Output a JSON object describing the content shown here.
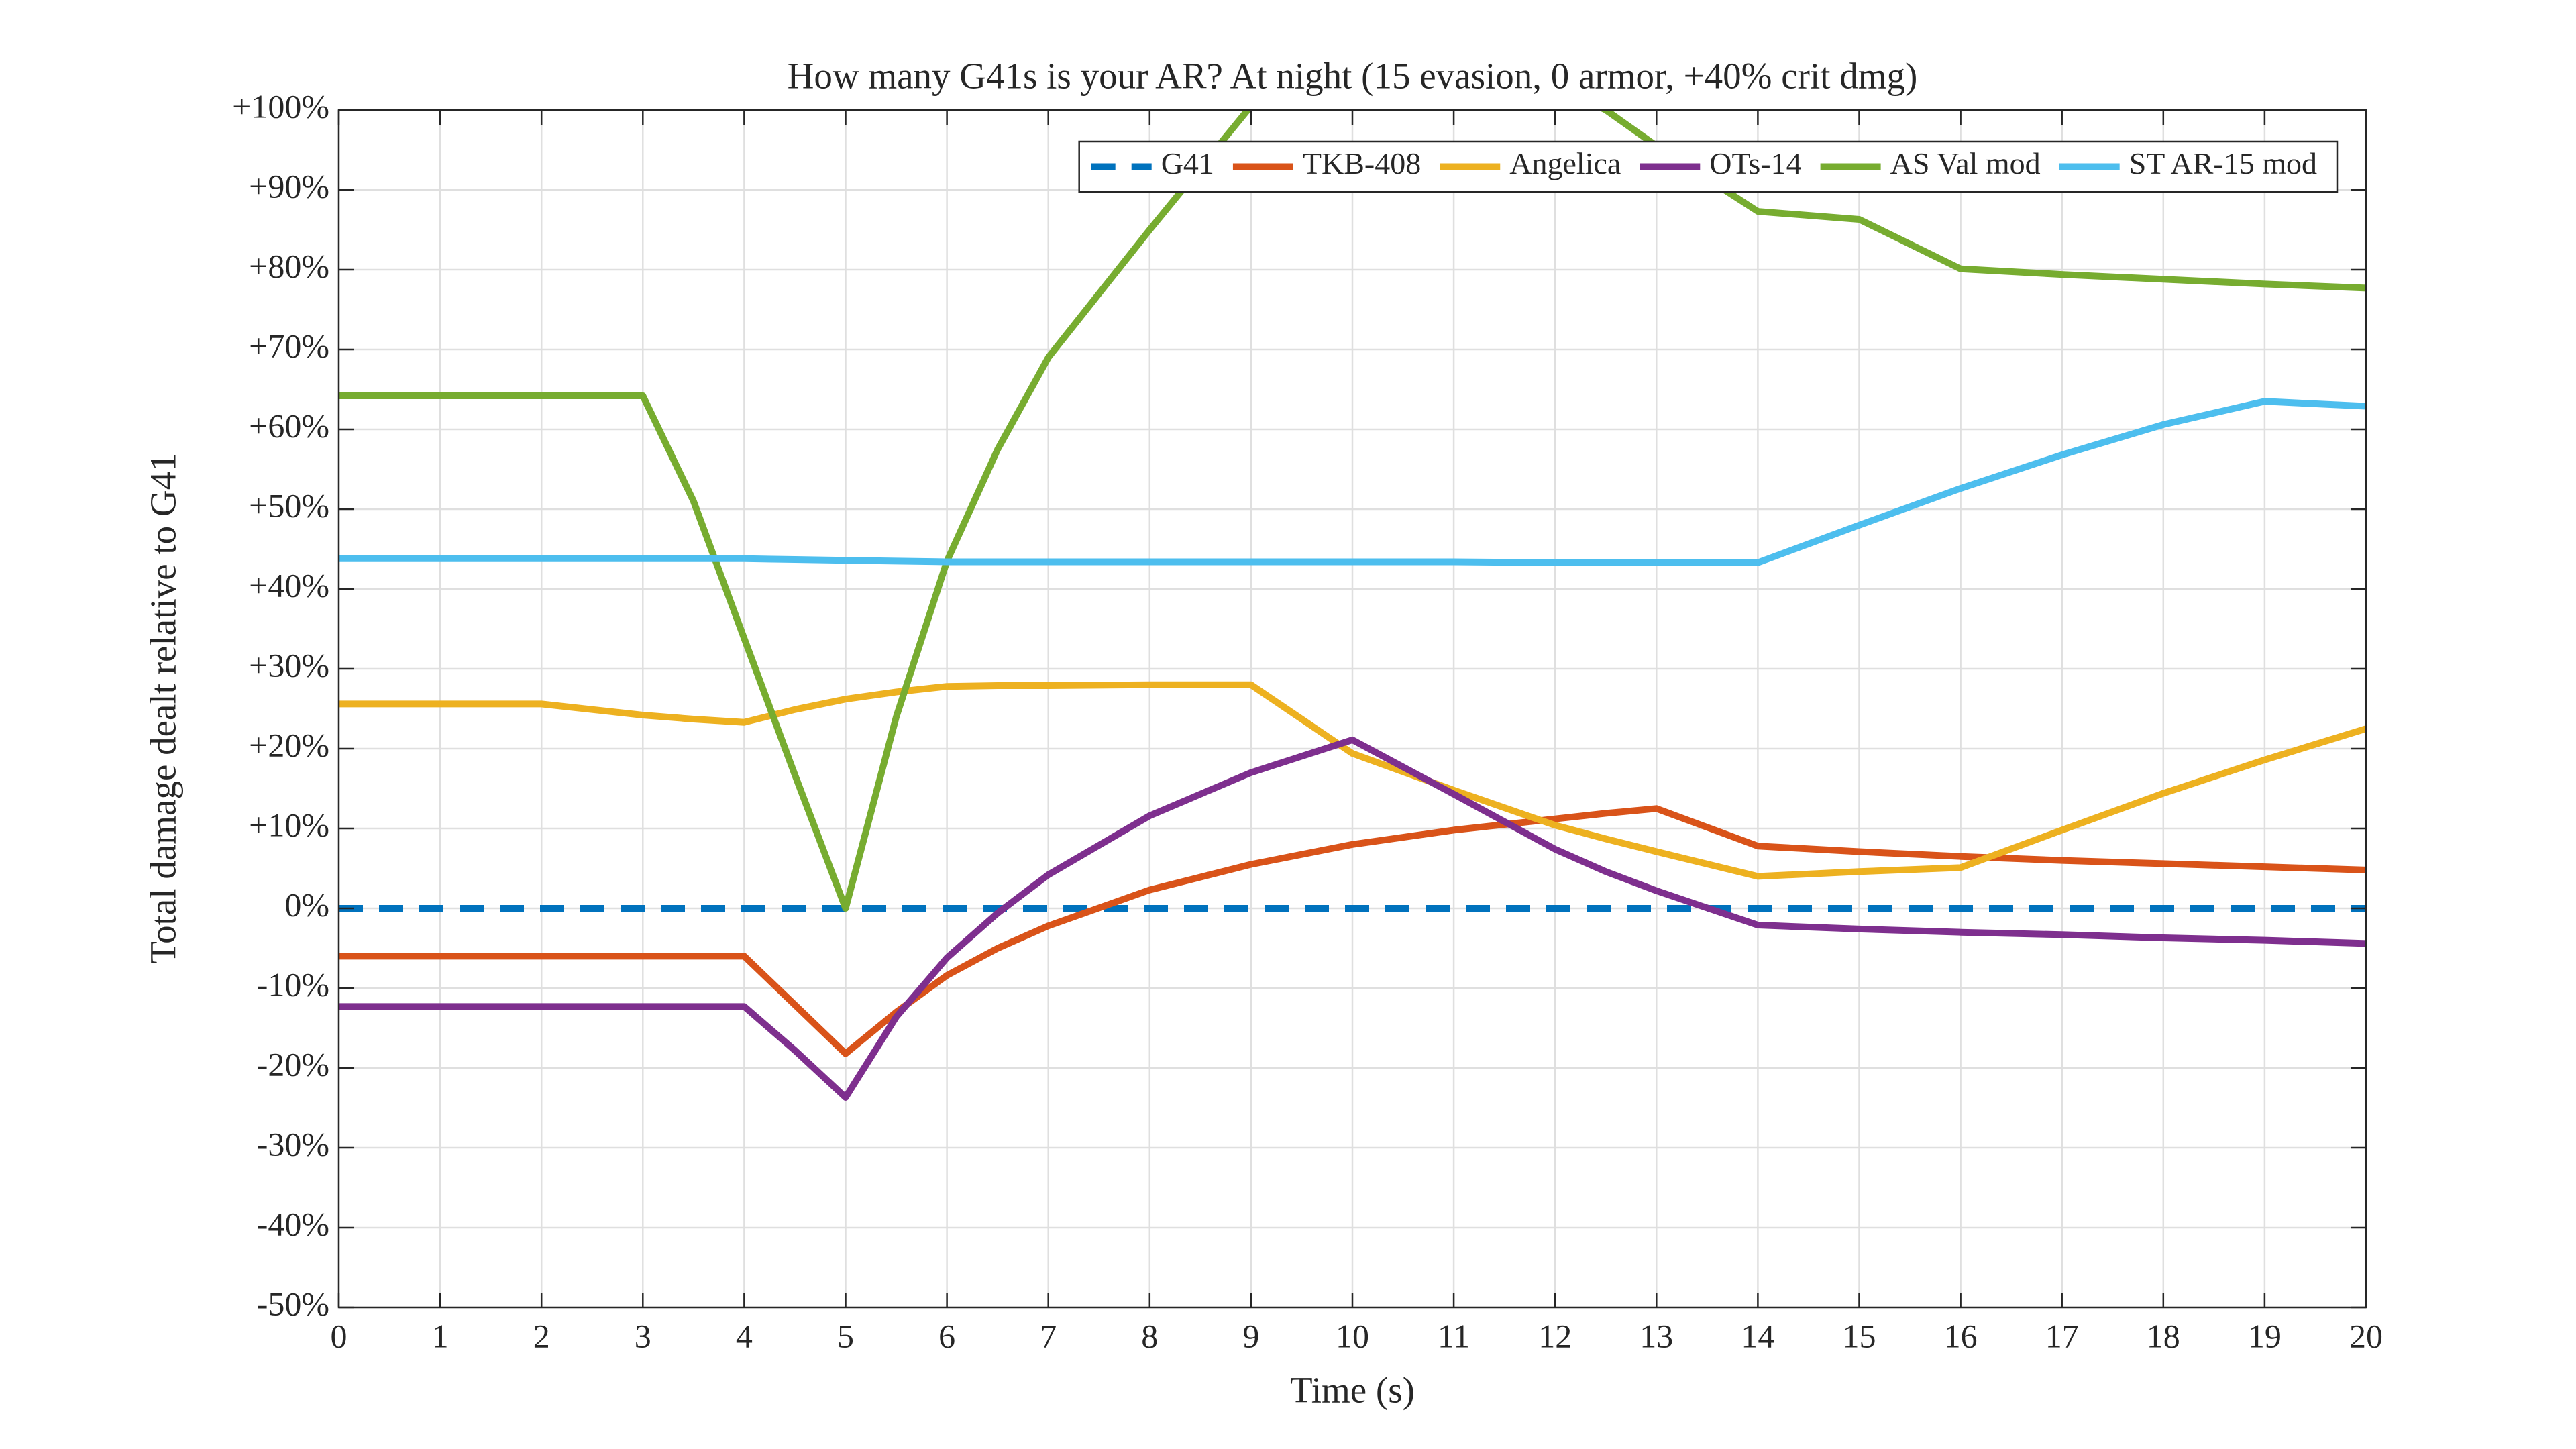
{
  "chart_data": {
    "type": "line",
    "title": "How many G41s is your AR? At night (15 evasion, 0 armor, +40% crit dmg)",
    "x_label": "Time (s)",
    "y_label": "Total damage dealt relative to G41",
    "x": [
      0,
      1,
      2,
      3,
      3.5,
      4,
      4.5,
      5,
      5.5,
      6,
      6.5,
      7,
      8,
      9,
      10,
      11,
      12,
      12.5,
      13,
      14,
      15,
      16,
      17,
      18,
      19,
      20
    ],
    "series": [
      {
        "name": "G41",
        "color": "#0072BD",
        "line_style": "dashed",
        "values": [
          0,
          0,
          0,
          0,
          0,
          0,
          0,
          0,
          0,
          0,
          0,
          0,
          0,
          0,
          0,
          0,
          0,
          0,
          0,
          0,
          0,
          0,
          0,
          0,
          0,
          0
        ]
      },
      {
        "name": "TKB-408",
        "color": "#D95319",
        "values": [
          -6,
          -6,
          -6,
          -6,
          -6,
          -6,
          -12.1,
          -18.2,
          -13,
          -8.4,
          -5,
          -2.2,
          2.3,
          5.5,
          8,
          9.8,
          11.2,
          11.9,
          12.5,
          7.8,
          7.1,
          6.5,
          6,
          5.6,
          5.2,
          4.8
        ]
      },
      {
        "name": "Angelica",
        "color": "#EDB120",
        "values": [
          25.6,
          25.6,
          25.6,
          24.2,
          23.7,
          23.3,
          24.9,
          26.2,
          27.1,
          27.8,
          27.9,
          27.9,
          28,
          28,
          19.4,
          14.8,
          10.4,
          8.7,
          7.1,
          4,
          4.6,
          5.1,
          9.8,
          14.4,
          18.6,
          22.5
        ]
      },
      {
        "name": "OTs-14",
        "color": "#7E2F8E",
        "values": [
          -12.3,
          -12.3,
          -12.3,
          -12.3,
          -12.3,
          -12.3,
          -17.8,
          -23.7,
          -13.6,
          -6.2,
          -0.6,
          4.2,
          11.6,
          17,
          21.1,
          14.3,
          7.4,
          4.6,
          2.2,
          -2.1,
          -2.6,
          -3,
          -3.3,
          -3.7,
          -4,
          -4.4
        ]
      },
      {
        "name": "AS Val mod",
        "color": "#77AC30",
        "values": [
          64.2,
          64.2,
          64.2,
          64.2,
          51,
          33.8,
          16.7,
          0,
          24,
          43.5,
          57.5,
          69,
          85,
          100.5,
          106,
          108,
          103,
          100,
          95.5,
          87.3,
          86.3,
          80.1,
          79.4,
          78.8,
          78.2,
          77.7
        ]
      },
      {
        "name": "ST AR-15 mod",
        "color": "#4DBEEE",
        "values": [
          43.8,
          43.8,
          43.8,
          43.8,
          43.8,
          43.8,
          43.7,
          43.6,
          43.5,
          43.4,
          43.4,
          43.4,
          43.4,
          43.4,
          43.4,
          43.4,
          43.3,
          43.3,
          43.3,
          43.3,
          48,
          52.6,
          56.8,
          60.6,
          63.5,
          62.9
        ]
      }
    ],
    "xlim": [
      0,
      20
    ],
    "xticks": [
      0,
      1,
      2,
      3,
      4,
      5,
      6,
      7,
      8,
      9,
      10,
      11,
      12,
      13,
      14,
      15,
      16,
      17,
      18,
      19,
      20
    ],
    "ylim": [
      -50,
      100
    ],
    "yticks": [
      {
        "value": -50,
        "label": "-50%"
      },
      {
        "value": -40,
        "label": "-40%"
      },
      {
        "value": -30,
        "label": "-30%"
      },
      {
        "value": -20,
        "label": "-20%"
      },
      {
        "value": -10,
        "label": "-10%"
      },
      {
        "value": 0,
        "label": "0%"
      },
      {
        "value": 10,
        "label": "+10%"
      },
      {
        "value": 20,
        "label": "+20%"
      },
      {
        "value": 30,
        "label": "+30%"
      },
      {
        "value": 40,
        "label": "+40%"
      },
      {
        "value": 50,
        "label": "+50%"
      },
      {
        "value": 60,
        "label": "+60%"
      },
      {
        "value": 70,
        "label": "+70%"
      },
      {
        "value": 80,
        "label": "+80%"
      },
      {
        "value": 90,
        "label": "+90%"
      },
      {
        "value": 100,
        "label": "+100%"
      }
    ],
    "grid": true,
    "legend": "north-east"
  }
}
